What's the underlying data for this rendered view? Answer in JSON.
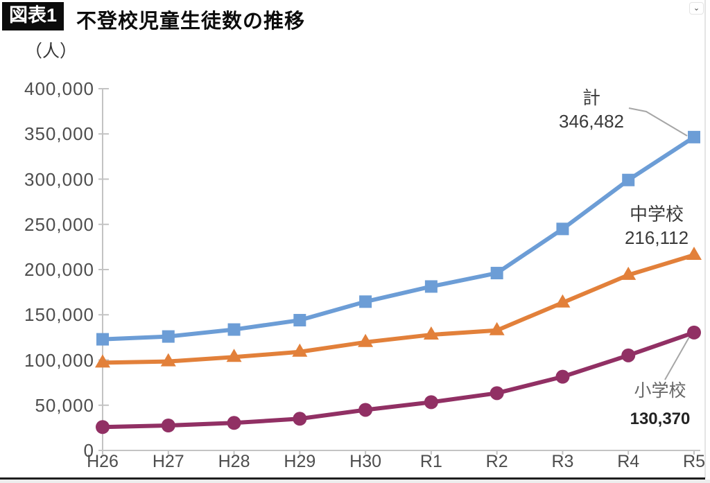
{
  "page": {
    "collapse_button_icon": "⌄"
  },
  "header": {
    "badge": "図表1",
    "title": "不登校児童生徒数の推移",
    "unit_label": "（人）"
  },
  "chart_data": {
    "type": "line",
    "title": "不登校児童生徒数の推移",
    "ylabel": "（人）",
    "categories": [
      "H26",
      "H27",
      "H28",
      "H29",
      "H30",
      "R1",
      "R2",
      "R3",
      "R4",
      "R5"
    ],
    "ylim": [
      0,
      400000
    ],
    "ytick_step": 50000,
    "ytick_labels": [
      "0",
      "50,000",
      "100,000",
      "150,000",
      "200,000",
      "250,000",
      "300,000",
      "350,000",
      "400,000"
    ],
    "grid": false,
    "legend_position": "inline-end-labels",
    "colors": {
      "total": "#6c9dd6",
      "junior_high": "#e2803a",
      "elementary": "#913064",
      "leader_line": "#a6a6a6",
      "axis": "#c3c3c3"
    },
    "series": [
      {
        "name": "計",
        "marker": "square",
        "color": "#6c9dd6",
        "values": [
          122897,
          125991,
          133683,
          144031,
          164528,
          181272,
          196127,
          244940,
          299048,
          346482
        ],
        "end_label": "346,482"
      },
      {
        "name": "中学校",
        "marker": "triangle",
        "color": "#e2803a",
        "values": [
          97033,
          98408,
          103235,
          108999,
          119687,
          127922,
          132777,
          163442,
          193936,
          216112
        ],
        "end_label": "216,112"
      },
      {
        "name": "小学校",
        "marker": "circle",
        "color": "#913064",
        "values": [
          25864,
          27583,
          30448,
          35032,
          44841,
          53350,
          63350,
          81498,
          105112,
          130370
        ],
        "end_label": "130,370"
      }
    ]
  }
}
